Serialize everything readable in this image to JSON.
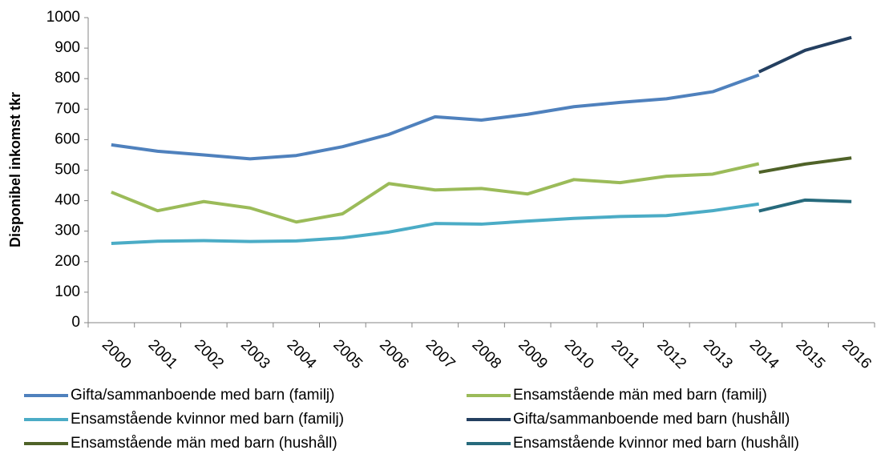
{
  "chart_data": {
    "type": "line",
    "y_label": "Disponibel inkomst tkr",
    "categories": [
      "2000",
      "2001",
      "2002",
      "2003",
      "2004",
      "2005",
      "2006",
      "2007",
      "2008",
      "2009",
      "2010",
      "2011",
      "2012",
      "2013",
      "2014",
      "2015",
      "2016"
    ],
    "series": [
      {
        "name": "Gifta/sammanboende med barn (familj)",
        "color": "#4f81bd",
        "values": [
          583,
          562,
          550,
          537,
          548,
          577,
          617,
          675,
          664,
          683,
          708,
          722,
          734,
          757,
          812,
          null,
          null
        ]
      },
      {
        "name": "Ensamstående män med barn (familj)",
        "color": "#9bbb59",
        "values": [
          428,
          367,
          397,
          376,
          330,
          357,
          456,
          435,
          440,
          422,
          469,
          459,
          480,
          487,
          521,
          null,
          null
        ]
      },
      {
        "name": "Ensamstående kvinnor med barn (familj)",
        "color": "#4bacc6",
        "values": [
          260,
          267,
          269,
          266,
          268,
          278,
          297,
          325,
          323,
          333,
          342,
          348,
          351,
          367,
          389,
          null,
          null
        ]
      },
      {
        "name": "Gifta/sammanboende med barn (hushåll)",
        "color": "#243f60",
        "values": [
          null,
          null,
          null,
          null,
          null,
          null,
          null,
          null,
          null,
          null,
          null,
          null,
          null,
          null,
          822,
          893,
          935
        ]
      },
      {
        "name": "Ensamstående män med barn (hushåll)",
        "color": "#4f6228",
        "values": [
          null,
          null,
          null,
          null,
          null,
          null,
          null,
          null,
          null,
          null,
          null,
          null,
          null,
          null,
          493,
          520,
          540
        ]
      },
      {
        "name": "Ensamstående kvinnor med barn (hushåll)",
        "color": "#276a7c",
        "values": [
          null,
          null,
          null,
          null,
          null,
          null,
          null,
          null,
          null,
          null,
          null,
          null,
          null,
          null,
          366,
          402,
          397
        ]
      }
    ],
    "ylim": [
      0,
      1000
    ],
    "yticks": [
      0,
      100,
      200,
      300,
      400,
      500,
      600,
      700,
      800,
      900,
      1000
    ],
    "grid": false,
    "legend": "bottom"
  }
}
